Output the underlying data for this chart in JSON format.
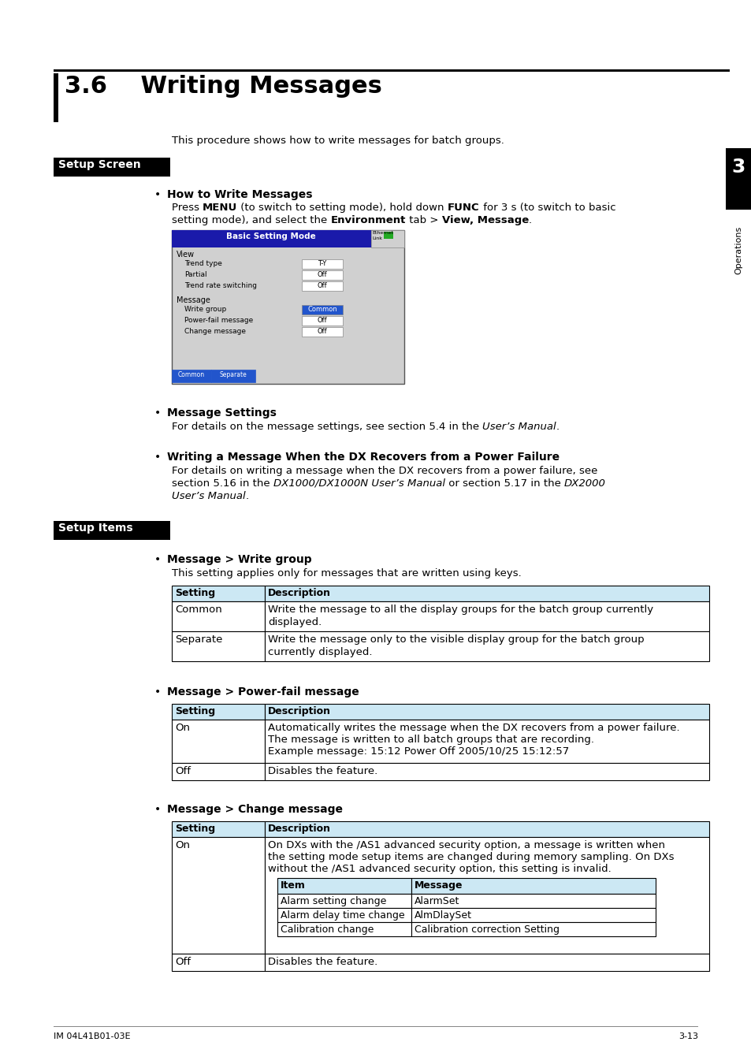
{
  "title": "3.6    Writing Messages",
  "intro_text": "This procedure shows how to write messages for batch groups.",
  "setup_screen_label": "Setup Screen",
  "setup_items_label": "Setup Items",
  "chapter_num": "3",
  "chapter_label": "Operations",
  "bullet1_title": "How to Write Messages",
  "bullet2_title": "Message Settings",
  "bullet2_body_plain": "For details on the message settings, see section 5.4 in the ",
  "bullet2_body_italic": "User’s Manual",
  "bullet2_body_end": ".",
  "bullet3_title": "Writing a Message When the DX Recovers from a Power Failure",
  "bullet3_body1": "For details on writing a message when the DX recovers from a power failure, see",
  "bullet3_body2a": "section 5.16 in the ",
  "bullet3_body2b": "DX1000/DX1000N User’s Manual",
  "bullet3_body2c": " or section 5.17 in the ",
  "bullet3_body2d": "DX2000",
  "bullet3_body3": "User’s Manual",
  "bullet3_body3end": ".",
  "write_group_title": "Message > Write group",
  "write_group_desc": "This setting applies only for messages that are written using keys.",
  "power_fail_title": "Message > Power-fail message",
  "change_msg_title": "Message > Change message",
  "tbl_hdr_setting": "Setting",
  "tbl_hdr_desc": "Description",
  "wg_row1_s": "Common",
  "wg_row1_d1": "Write the message to all the display groups for the batch group currently",
  "wg_row1_d2": "displayed.",
  "wg_row2_s": "Separate",
  "wg_row2_d1": "Write the message only to the visible display group for the batch group",
  "wg_row2_d2": "currently displayed.",
  "pf_row1_s": "On",
  "pf_row1_d1": "Automatically writes the message when the DX recovers from a power failure.",
  "pf_row1_d2": "The message is written to all batch groups that are recording.",
  "pf_row1_d3": "Example message: 15:12 Power Off 2005/10/25 15:12:57",
  "pf_row2_s": "Off",
  "pf_row2_d": "Disables the feature.",
  "cm_row1_s": "On",
  "cm_row1_d1": "On DXs with the /AS1 advanced security option, a message is written when",
  "cm_row1_d2": "the setting mode setup items are changed during memory sampling. On DXs",
  "cm_row1_d3": "without the /AS1 advanced security option, this setting is invalid.",
  "cm_row2_s": "Off",
  "cm_row2_d": "Disables the feature.",
  "inner_hdr_item": "Item",
  "inner_hdr_msg": "Message",
  "inner_r1_item": "Alarm setting change",
  "inner_r1_msg": "AlarmSet",
  "inner_r2_item": "Alarm delay time change",
  "inner_r2_msg": "AlmDlaySet",
  "inner_r3_item": "Calibration change",
  "inner_r3_msg": "Calibration correction Setting",
  "footer_left": "IM 04L41B01-03E",
  "footer_right": "3-13",
  "bg_color": "#ffffff",
  "table_header_bg": "#cce8f4",
  "table_border": "#000000",
  "black": "#000000",
  "white": "#ffffff",
  "press_line1a": "Press ",
  "press_line1b": "MENU",
  "press_line1c": " (to switch to setting mode), hold down ",
  "press_line1d": "FUNC",
  "press_line1e": " for 3 s (to switch to basic",
  "press_line2a": "setting mode), and select the ",
  "press_line2b": "Environment",
  "press_line2c": " tab > ",
  "press_line2d": "View, Message",
  "press_line2e": "."
}
